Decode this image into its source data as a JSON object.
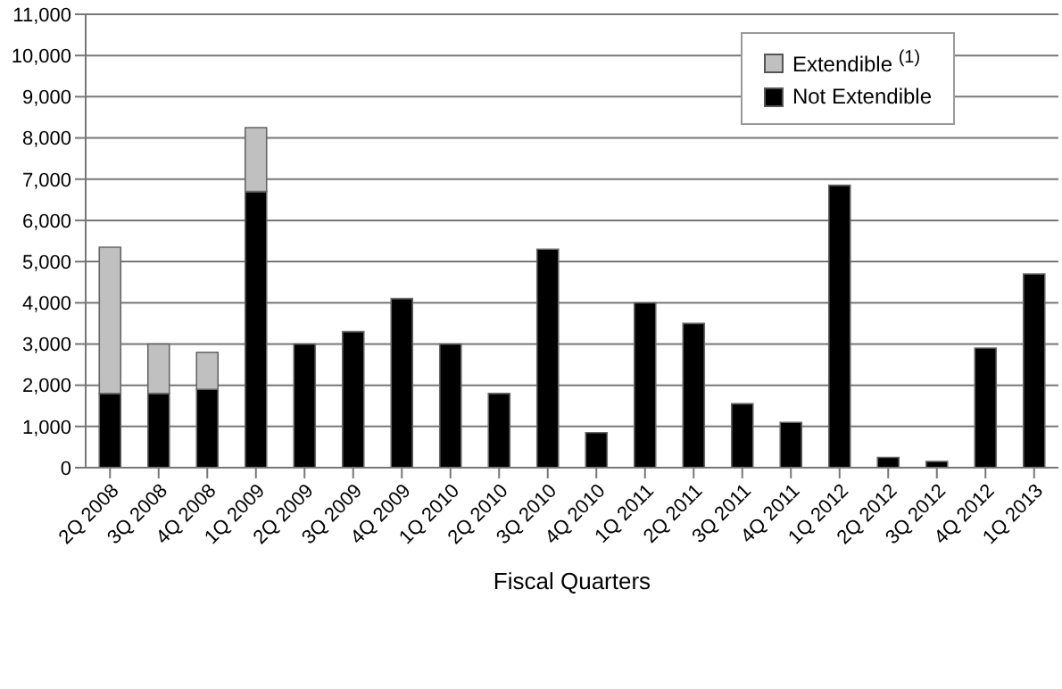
{
  "chart_data": {
    "type": "bar",
    "xlabel": "Fiscal Quarters",
    "stacked": true,
    "grid": "y",
    "legend": "top right",
    "categories": [
      "2Q 2008",
      "3Q 2008",
      "4Q 2008",
      "1Q 2009",
      "2Q 2009",
      "3Q 2009",
      "4Q 2009",
      "1Q 2010",
      "2Q 2010",
      "3Q 2010",
      "4Q 2010",
      "1Q 2011",
      "2Q 2011",
      "3Q 2011",
      "4Q 2011",
      "1Q 2012",
      "2Q 2012",
      "3Q 2012",
      "4Q 2012",
      "1Q 2013"
    ],
    "series": [
      {
        "name": "Not Extendible",
        "color": "#000000",
        "values": [
          1800,
          1800,
          1900,
          6700,
          3000,
          3300,
          4100,
          3000,
          1800,
          5300,
          850,
          4000,
          3500,
          1550,
          1100,
          6850,
          250,
          150,
          2900,
          4700
        ]
      },
      {
        "name": "Extendible $^{(1)}$",
        "color": "#c0c0c0",
        "values": [
          3550,
          1200,
          900,
          1550,
          null,
          null,
          null,
          null,
          null,
          null,
          null,
          null,
          null,
          null,
          null,
          null,
          null,
          null,
          null,
          null
        ]
      }
    ],
    "ylim": [
      0,
      11000
    ],
    "yticks": [
      0,
      {
        "value": 1000,
        "label": "1,000"
      },
      {
        "value": 2000,
        "label": "2,000"
      },
      {
        "value": 3000,
        "label": "3,000"
      },
      {
        "value": 4000,
        "label": "4,000"
      },
      {
        "value": 5000,
        "label": "5,000"
      },
      {
        "value": 6000,
        "label": "6,000"
      },
      {
        "value": 7000,
        "label": "7,000"
      },
      {
        "value": 8000,
        "label": "8,000"
      },
      {
        "value": 9000,
        "label": "9,000"
      },
      {
        "value": 10000,
        "label": "10,000"
      },
      {
        "value": 11000,
        "label": "11,000"
      }
    ]
  }
}
